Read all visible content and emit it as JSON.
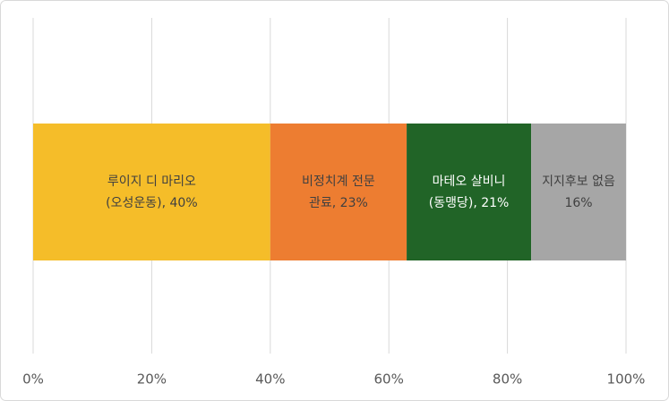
{
  "chart_data": {
    "type": "stacked-bar-horizontal",
    "series": [
      {
        "color": "#F5BD29",
        "values": [
          40
        ],
        "value_labels": [
          "루이지 디 마리오\n(오성운동), 40%"
        ]
      },
      {
        "color": "#ED7D31",
        "values": [
          23
        ],
        "value_labels": [
          "비정치계 전문\n관료, 23%"
        ]
      },
      {
        "color": "#216427",
        "values": [
          21
        ],
        "value_labels": [
          "마테오 살비니\n(동맹당), 21%"
        ]
      },
      {
        "color": "#A6A6A6",
        "values": [
          16
        ],
        "value_labels": [
          "지지후보 없음\n16%"
        ]
      }
    ],
    "xlim": [
      0,
      100
    ],
    "xticks": [
      {
        "value": 0,
        "label": "0%"
      },
      {
        "value": 20,
        "label": "20%"
      },
      {
        "value": 40,
        "label": "40%"
      },
      {
        "value": 60,
        "label": "60%"
      },
      {
        "value": 80,
        "label": "80%"
      },
      {
        "value": 100,
        "label": "100%"
      }
    ],
    "grid": true
  }
}
